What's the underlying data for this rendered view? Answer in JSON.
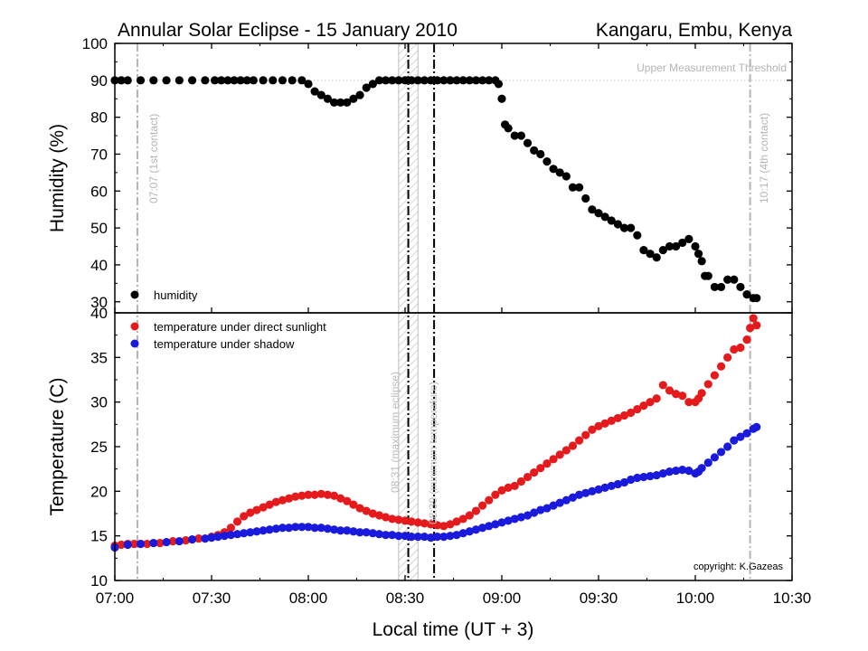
{
  "title": "Annular Solar Eclipse - 15 January 2010",
  "location": "Kangaru, Embu, Kenya",
  "copyright": "copyright: K.Gazeas",
  "colors": {
    "humidity": "#000000",
    "sun": "#e41a1c",
    "shadow": "#1a1adc",
    "guide": "#b4b4b4"
  },
  "chart_data": [
    {
      "type": "scatter",
      "panel": "top",
      "ylabel": "Humidity (%)",
      "xlabel": "",
      "xlim": [
        "07:00",
        "10:30"
      ],
      "ylim": [
        27,
        100
      ],
      "yticks": [
        30,
        40,
        50,
        60,
        70,
        80,
        90,
        100
      ],
      "grid": false,
      "legend_position": "bottom-left",
      "series": [
        {
          "name": "humidity",
          "color": "#000000",
          "x": [
            "07:00",
            "07:02",
            "07:04",
            "07:08",
            "07:12",
            "07:16",
            "07:20",
            "07:24",
            "07:28",
            "07:31",
            "07:33",
            "07:35",
            "07:37",
            "07:39",
            "07:41",
            "07:43",
            "07:46",
            "07:49",
            "07:52",
            "07:55",
            "07:58",
            "08:00",
            "08:02",
            "08:04",
            "08:06",
            "08:08",
            "08:10",
            "08:12",
            "08:14",
            "08:16",
            "08:18",
            "08:20",
            "08:22",
            "08:24",
            "08:26",
            "08:28",
            "08:30",
            "08:32",
            "08:34",
            "08:36",
            "08:38",
            "08:40",
            "08:42",
            "08:44",
            "08:46",
            "08:48",
            "08:50",
            "08:52",
            "08:54",
            "08:56",
            "08:58",
            "08:59",
            "09:00",
            "09:01",
            "09:02",
            "09:04",
            "09:06",
            "09:08",
            "09:10",
            "09:12",
            "09:14",
            "09:16",
            "09:18",
            "09:20",
            "09:22",
            "09:24",
            "09:26",
            "09:28",
            "09:30",
            "09:32",
            "09:34",
            "09:36",
            "09:38",
            "09:40",
            "09:42",
            "09:44",
            "09:46",
            "09:48",
            "09:50",
            "09:52",
            "09:54",
            "09:56",
            "09:58",
            "10:00",
            "10:01",
            "10:02",
            "10:03",
            "10:04",
            "10:06",
            "10:08",
            "10:10",
            "10:12",
            "10:14",
            "10:16",
            "10:18",
            "10:19"
          ],
          "y": [
            90,
            90,
            90,
            90,
            90,
            90,
            90,
            90,
            90,
            90,
            90,
            90,
            90,
            90,
            90,
            90,
            90,
            90,
            90,
            90,
            90,
            89,
            87,
            86,
            85,
            84,
            84,
            84,
            85,
            86,
            88,
            89,
            90,
            90,
            90,
            90,
            90,
            90,
            90,
            90,
            90,
            90,
            90,
            90,
            90,
            90,
            90,
            90,
            90,
            90,
            90,
            89,
            85,
            78,
            77,
            75,
            75,
            73,
            71,
            70,
            68,
            66,
            65,
            64,
            61,
            61,
            58,
            55,
            54,
            53,
            52,
            51,
            50,
            50,
            48,
            44,
            43,
            42,
            44,
            45,
            45,
            46,
            47,
            45,
            43,
            41,
            37,
            37,
            34,
            34,
            36,
            36,
            34,
            32,
            31,
            31
          ]
        }
      ]
    },
    {
      "type": "scatter",
      "panel": "bottom",
      "ylabel": "Temperature (C)",
      "xlabel": "Local time  (UT + 3)",
      "xlim": [
        "07:00",
        "10:30"
      ],
      "ylim": [
        10,
        40
      ],
      "yticks": [
        10,
        15,
        20,
        25,
        30,
        35,
        40
      ],
      "xticks": [
        "07:00",
        "07:30",
        "08:00",
        "08:30",
        "09:00",
        "09:30",
        "10:00",
        "10:30"
      ],
      "grid": false,
      "legend_position": "top-left",
      "series": [
        {
          "name": "temperature under direct sunlight",
          "color": "#e41a1c",
          "x": [
            "07:00",
            "07:02",
            "07:04",
            "07:06",
            "07:08",
            "07:10",
            "07:14",
            "07:18",
            "07:22",
            "07:26",
            "07:30",
            "07:32",
            "07:34",
            "07:36",
            "07:38",
            "07:40",
            "07:42",
            "07:44",
            "07:46",
            "07:48",
            "07:50",
            "07:52",
            "07:54",
            "07:56",
            "07:58",
            "08:00",
            "08:02",
            "08:04",
            "08:06",
            "08:08",
            "08:10",
            "08:12",
            "08:14",
            "08:16",
            "08:18",
            "08:20",
            "08:22",
            "08:24",
            "08:26",
            "08:28",
            "08:30",
            "08:32",
            "08:34",
            "08:36",
            "08:38",
            "08:40",
            "08:42",
            "08:44",
            "08:46",
            "08:48",
            "08:50",
            "08:52",
            "08:54",
            "08:56",
            "08:58",
            "09:00",
            "09:02",
            "09:04",
            "09:06",
            "09:08",
            "09:10",
            "09:12",
            "09:14",
            "09:16",
            "09:18",
            "09:20",
            "09:22",
            "09:24",
            "09:26",
            "09:28",
            "09:30",
            "09:32",
            "09:34",
            "09:36",
            "09:38",
            "09:40",
            "09:42",
            "09:44",
            "09:46",
            "09:48",
            "09:50",
            "09:52",
            "09:54",
            "09:56",
            "09:58",
            "10:00",
            "10:01",
            "10:02",
            "10:04",
            "10:06",
            "10:08",
            "10:10",
            "10:12",
            "10:14",
            "10:16",
            "10:17",
            "10:18",
            "10:19"
          ],
          "y": [
            13.9,
            14.0,
            14.1,
            14.1,
            14.1,
            14.1,
            14.2,
            14.4,
            14.5,
            14.7,
            14.9,
            15.1,
            15.4,
            15.9,
            16.6,
            17.2,
            17.6,
            17.9,
            18.2,
            18.5,
            18.8,
            19.0,
            19.2,
            19.4,
            19.5,
            19.6,
            19.6,
            19.7,
            19.6,
            19.5,
            19.2,
            18.9,
            18.5,
            18.1,
            17.8,
            17.5,
            17.3,
            17.1,
            16.9,
            16.8,
            16.7,
            16.6,
            16.5,
            16.4,
            16.3,
            16.2,
            16.1,
            16.3,
            16.6,
            16.9,
            17.3,
            17.8,
            18.4,
            19.0,
            19.6,
            20.1,
            20.4,
            20.6,
            21.1,
            21.6,
            22.1,
            22.6,
            23.1,
            23.6,
            24.1,
            24.6,
            25.1,
            25.7,
            26.3,
            26.9,
            27.3,
            27.6,
            27.9,
            28.2,
            28.5,
            28.8,
            29.2,
            29.6,
            30.0,
            30.4,
            31.9,
            31.3,
            30.9,
            30.7,
            30.0,
            30.0,
            30.4,
            31.0,
            32.0,
            33.0,
            34.0,
            35.0,
            35.9,
            36.1,
            37.0,
            38.3,
            39.4,
            38.6
          ]
        },
        {
          "name": "temperature under shadow",
          "color": "#1a1adc",
          "x": [
            "07:00",
            "07:04",
            "07:08",
            "07:12",
            "07:16",
            "07:20",
            "07:24",
            "07:28",
            "07:30",
            "07:32",
            "07:34",
            "07:36",
            "07:38",
            "07:40",
            "07:42",
            "07:44",
            "07:46",
            "07:48",
            "07:50",
            "07:52",
            "07:54",
            "07:56",
            "07:58",
            "08:00",
            "08:02",
            "08:04",
            "08:06",
            "08:08",
            "08:10",
            "08:12",
            "08:14",
            "08:16",
            "08:18",
            "08:20",
            "08:22",
            "08:24",
            "08:26",
            "08:28",
            "08:30",
            "08:32",
            "08:34",
            "08:36",
            "08:38",
            "08:40",
            "08:42",
            "08:44",
            "08:46",
            "08:48",
            "08:50",
            "08:52",
            "08:54",
            "08:56",
            "08:58",
            "09:00",
            "09:02",
            "09:04",
            "09:06",
            "09:08",
            "09:10",
            "09:12",
            "09:14",
            "09:16",
            "09:18",
            "09:20",
            "09:22",
            "09:24",
            "09:26",
            "09:28",
            "09:30",
            "09:32",
            "09:34",
            "09:36",
            "09:38",
            "09:40",
            "09:42",
            "09:44",
            "09:46",
            "09:48",
            "09:50",
            "09:52",
            "09:54",
            "09:56",
            "09:58",
            "10:00",
            "10:01",
            "10:02",
            "10:04",
            "10:06",
            "10:08",
            "10:10",
            "10:12",
            "10:14",
            "10:16",
            "10:18",
            "10:19"
          ],
          "y": [
            13.7,
            14.0,
            14.1,
            14.2,
            14.3,
            14.4,
            14.6,
            14.7,
            14.8,
            14.9,
            15.0,
            15.1,
            15.2,
            15.3,
            15.4,
            15.5,
            15.6,
            15.7,
            15.8,
            15.9,
            15.9,
            16.0,
            16.0,
            16.0,
            15.9,
            15.9,
            15.8,
            15.7,
            15.6,
            15.6,
            15.5,
            15.4,
            15.4,
            15.3,
            15.2,
            15.1,
            15.1,
            15.0,
            15.0,
            14.9,
            14.9,
            14.9,
            14.8,
            14.9,
            14.9,
            15.0,
            15.1,
            15.3,
            15.5,
            15.7,
            15.9,
            16.1,
            16.3,
            16.5,
            16.7,
            16.9,
            17.1,
            17.3,
            17.6,
            17.9,
            18.1,
            18.4,
            18.7,
            19.0,
            19.3,
            19.6,
            19.8,
            20.0,
            20.2,
            20.4,
            20.6,
            20.8,
            21.0,
            21.3,
            21.5,
            21.6,
            21.7,
            21.8,
            22.0,
            22.2,
            22.3,
            22.4,
            22.3,
            22.0,
            22.2,
            22.6,
            23.2,
            23.8,
            24.4,
            25.0,
            25.7,
            26.1,
            26.5,
            27.0,
            27.2
          ]
        }
      ]
    }
  ],
  "markers": {
    "first_contact": {
      "time": "07:07",
      "label": "07:07 (1st contact)"
    },
    "fourth_contact": {
      "time": "10:17",
      "label": "10:17 (4th contact)"
    },
    "maximum_eclipse": {
      "time": "08:31",
      "band": [
        "08:28",
        "08:34"
      ],
      "label": "08:31 (maximum eclipse)"
    },
    "minimum_temperature": {
      "time": "08:39",
      "label": "08:39 (minimum temperature)"
    },
    "threshold": {
      "value": 90,
      "label": "Upper Measurement Threshold"
    }
  }
}
